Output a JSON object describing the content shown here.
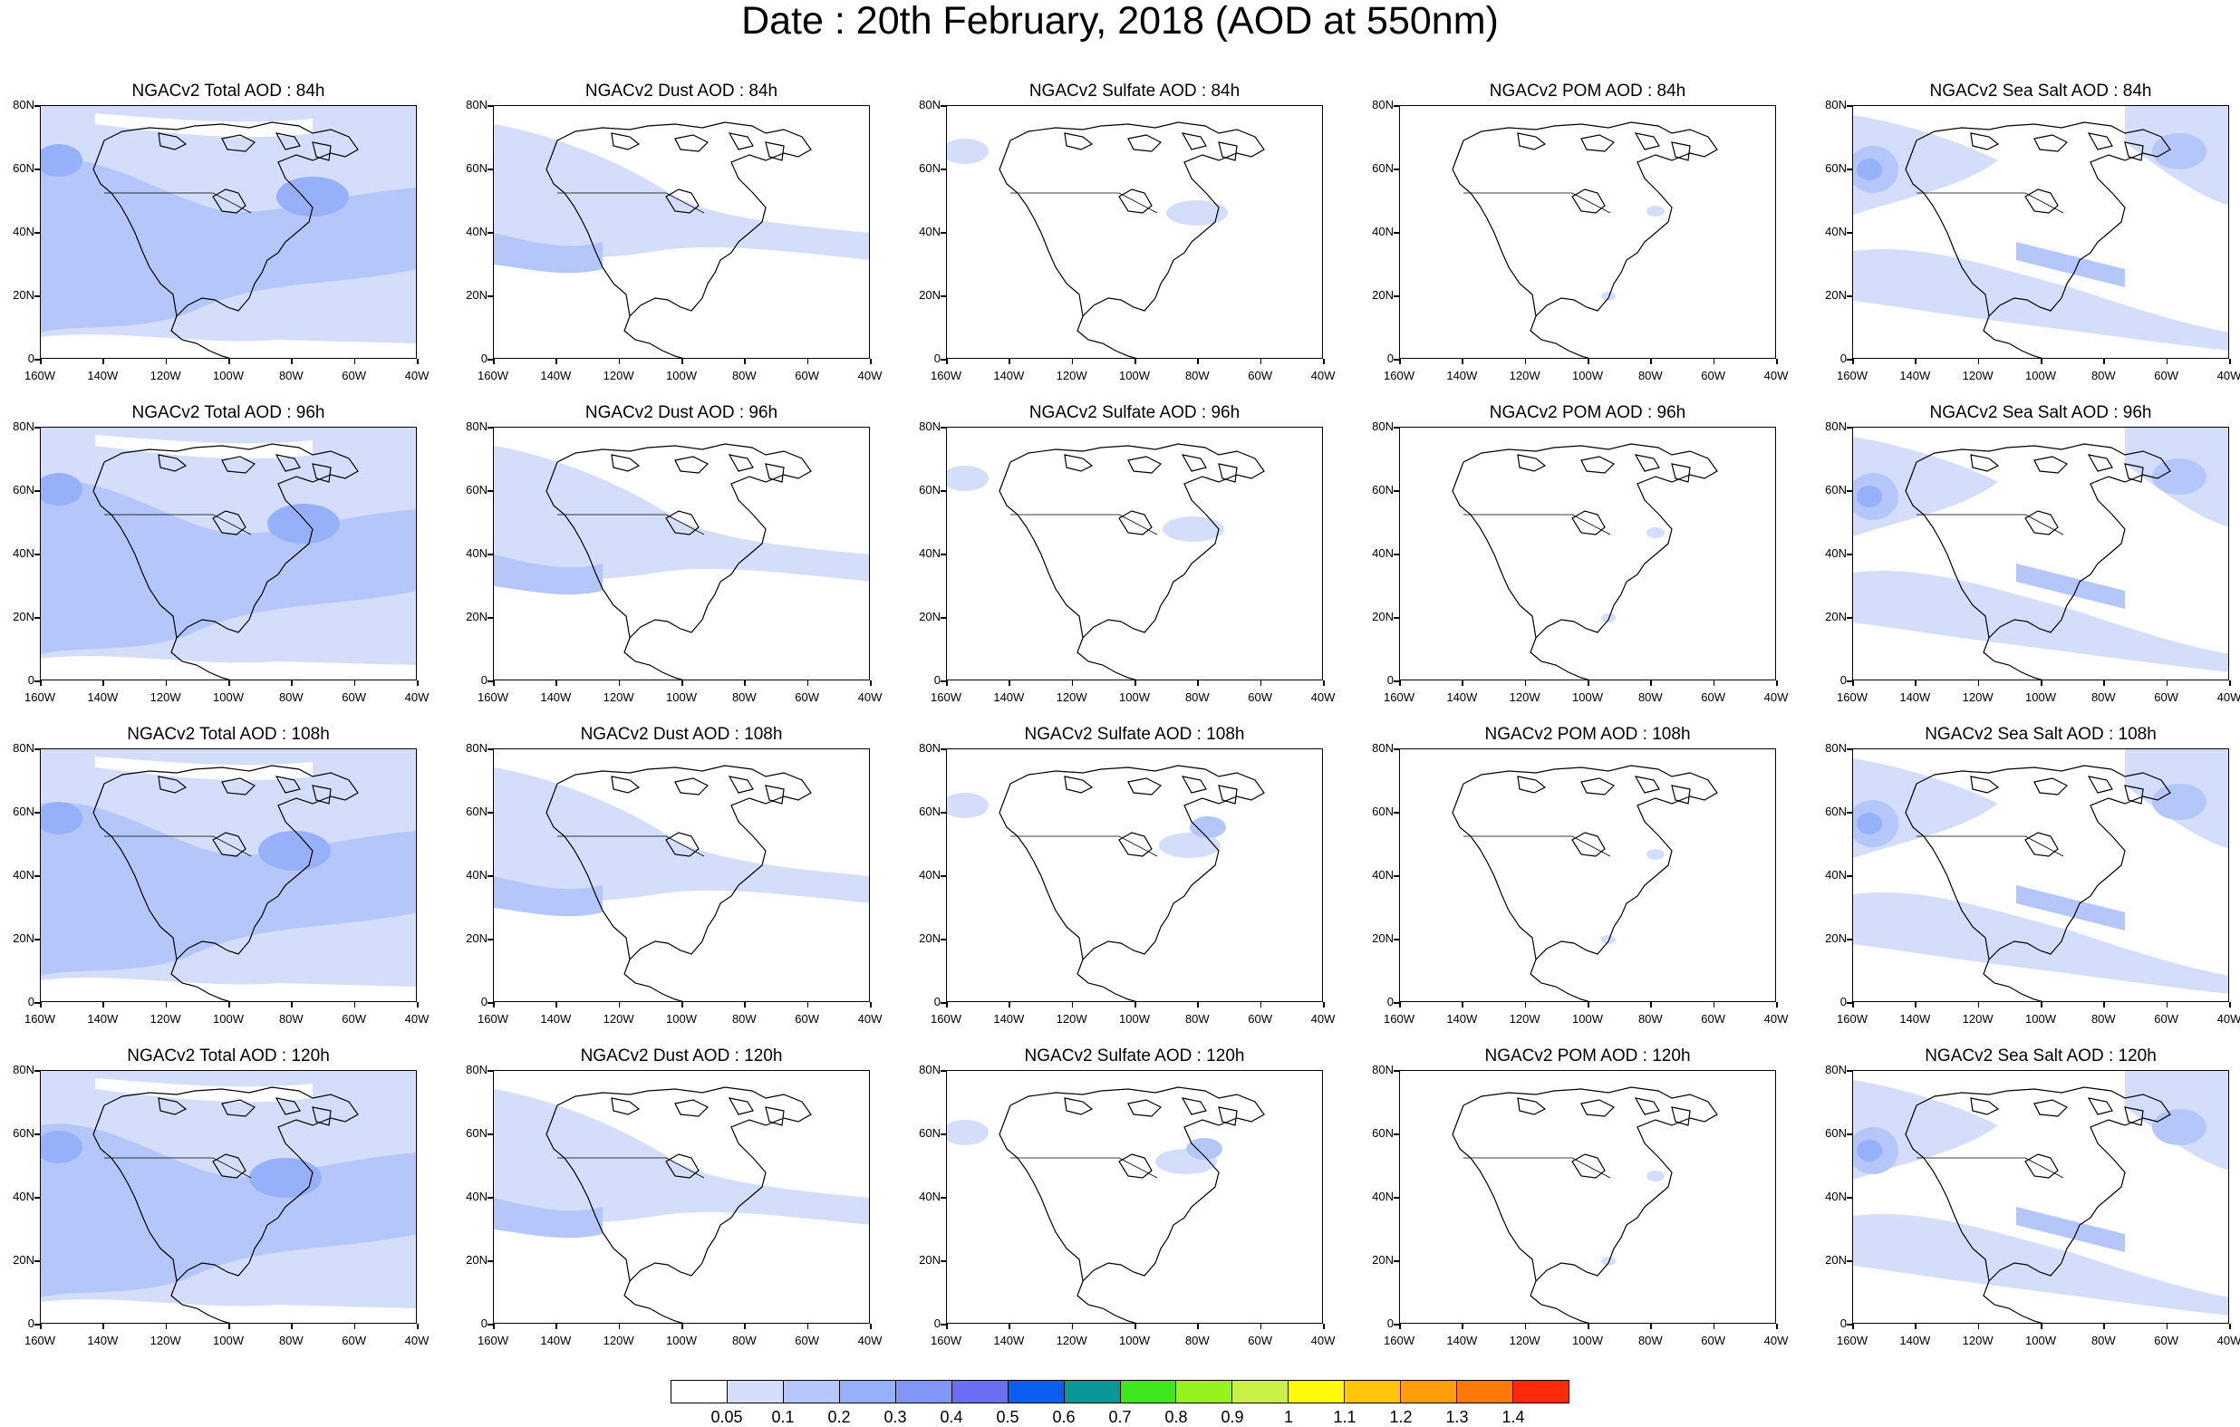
{
  "title": "Date : 20th February, 2018 (AOD at 550nm)",
  "row_titles": [
    [
      "NGACv2 Total AOD : 84h",
      "NGACv2 Dust AOD : 84h",
      "NGACv2 Sulfate AOD : 84h",
      "NGACv2 POM AOD : 84h",
      "NGACv2 Sea Salt AOD : 84h"
    ],
    [
      "NGACv2 Total AOD : 96h",
      "NGACv2 Dust AOD : 96h",
      "NGACv2 Sulfate AOD : 96h",
      "NGACv2 POM AOD : 96h",
      "NGACv2 Sea Salt AOD : 96h"
    ],
    [
      "NGACv2 Total AOD : 108h",
      "NGACv2 Dust AOD : 108h",
      "NGACv2 Sulfate AOD : 108h",
      "NGACv2 POM AOD : 108h",
      "NGACv2 Sea Salt AOD : 108h"
    ],
    [
      "NGACv2 Total AOD : 120h",
      "NGACv2 Dust AOD : 120h",
      "NGACv2 Sulfate AOD : 120h",
      "NGACv2 POM AOD : 120h",
      "NGACv2 Sea Salt  AOD : 120h"
    ]
  ],
  "lat_labels": [
    "80N",
    "60N",
    "40N",
    "20N",
    "0"
  ],
  "lon_labels": [
    "160W",
    "140W",
    "120W",
    "100W",
    "80W",
    "60W",
    "40W"
  ],
  "colorbar": {
    "colors": [
      "#ffffff",
      "#d4defb",
      "#b4c6fa",
      "#96b0fa",
      "#8296f8",
      "#6a6ef2",
      "#0a5ef2",
      "#0a9896",
      "#3ee61e",
      "#96f21e",
      "#c8f046",
      "#fffa0a",
      "#ffc60a",
      "#ff9e0a",
      "#ff780a",
      "#ff2a0a"
    ],
    "labels": [
      "0.05",
      "0.1",
      "0.2",
      "0.3",
      "0.4",
      "0.5",
      "0.6",
      "0.7",
      "0.8",
      "0.9",
      "1",
      "1.1",
      "1.2",
      "1.3",
      "1.4"
    ]
  },
  "field_colors": {
    "light": "#d4defb",
    "mid": "#b4c6fa",
    "strong": "#96b0fa",
    "coast": "#000000"
  }
}
